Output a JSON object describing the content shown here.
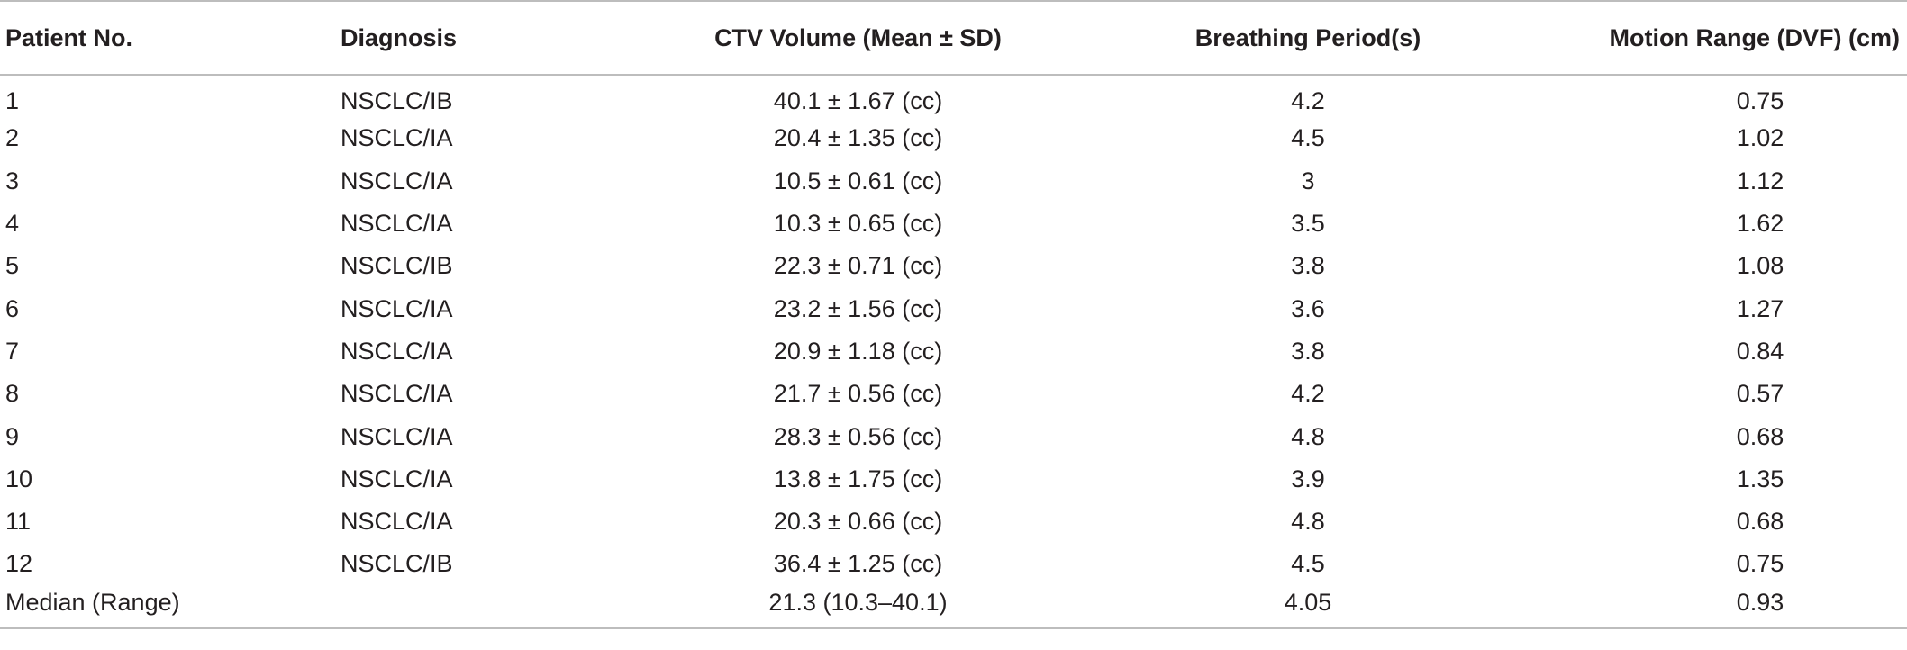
{
  "table": {
    "headers": {
      "patient_no": "Patient No.",
      "diagnosis": "Diagnosis",
      "ctv_volume": "CTV Volume (Mean ± SD)",
      "breathing_period": "Breathing Period(s)",
      "motion_range": "Motion Range (DVF) (cm)"
    },
    "rows": [
      {
        "patient": "1",
        "diagnosis": "NSCLC/IB",
        "ctv": "40.1 ± 1.67 (cc)",
        "period": "4.2",
        "motion": "0.75"
      },
      {
        "patient": "2",
        "diagnosis": "NSCLC/IA",
        "ctv": "20.4 ± 1.35 (cc)",
        "period": "4.5",
        "motion": "1.02"
      },
      {
        "patient": "3",
        "diagnosis": "NSCLC/IA",
        "ctv": "10.5 ± 0.61 (cc)",
        "period": "3",
        "motion": "1.12"
      },
      {
        "patient": "4",
        "diagnosis": "NSCLC/IA",
        "ctv": "10.3 ± 0.65 (cc)",
        "period": "3.5",
        "motion": "1.62"
      },
      {
        "patient": "5",
        "diagnosis": "NSCLC/IB",
        "ctv": "22.3 ± 0.71 (cc)",
        "period": "3.8",
        "motion": "1.08"
      },
      {
        "patient": "6",
        "diagnosis": "NSCLC/IA",
        "ctv": "23.2 ± 1.56 (cc)",
        "period": "3.6",
        "motion": "1.27"
      },
      {
        "patient": "7",
        "diagnosis": "NSCLC/IA",
        "ctv": "20.9 ± 1.18 (cc)",
        "period": "3.8",
        "motion": "0.84"
      },
      {
        "patient": "8",
        "diagnosis": "NSCLC/IA",
        "ctv": "21.7 ± 0.56 (cc)",
        "period": "4.2",
        "motion": "0.57"
      },
      {
        "patient": "9",
        "diagnosis": "NSCLC/IA",
        "ctv": "28.3 ± 0.56 (cc)",
        "period": "4.8",
        "motion": "0.68"
      },
      {
        "patient": "10",
        "diagnosis": "NSCLC/IA",
        "ctv": "13.8 ± 1.75 (cc)",
        "period": "3.9",
        "motion": "1.35"
      },
      {
        "patient": "11",
        "diagnosis": "NSCLC/IA",
        "ctv": "20.3 ± 0.66 (cc)",
        "period": "4.8",
        "motion": "0.68"
      },
      {
        "patient": "12",
        "diagnosis": "NSCLC/IB",
        "ctv": "36.4 ± 1.25 (cc)",
        "period": "4.5",
        "motion": "0.75"
      },
      {
        "patient": "Median (Range)",
        "diagnosis": "",
        "ctv": "21.3 (10.3–40.1)",
        "period": "4.05",
        "motion": "0.93"
      }
    ]
  }
}
